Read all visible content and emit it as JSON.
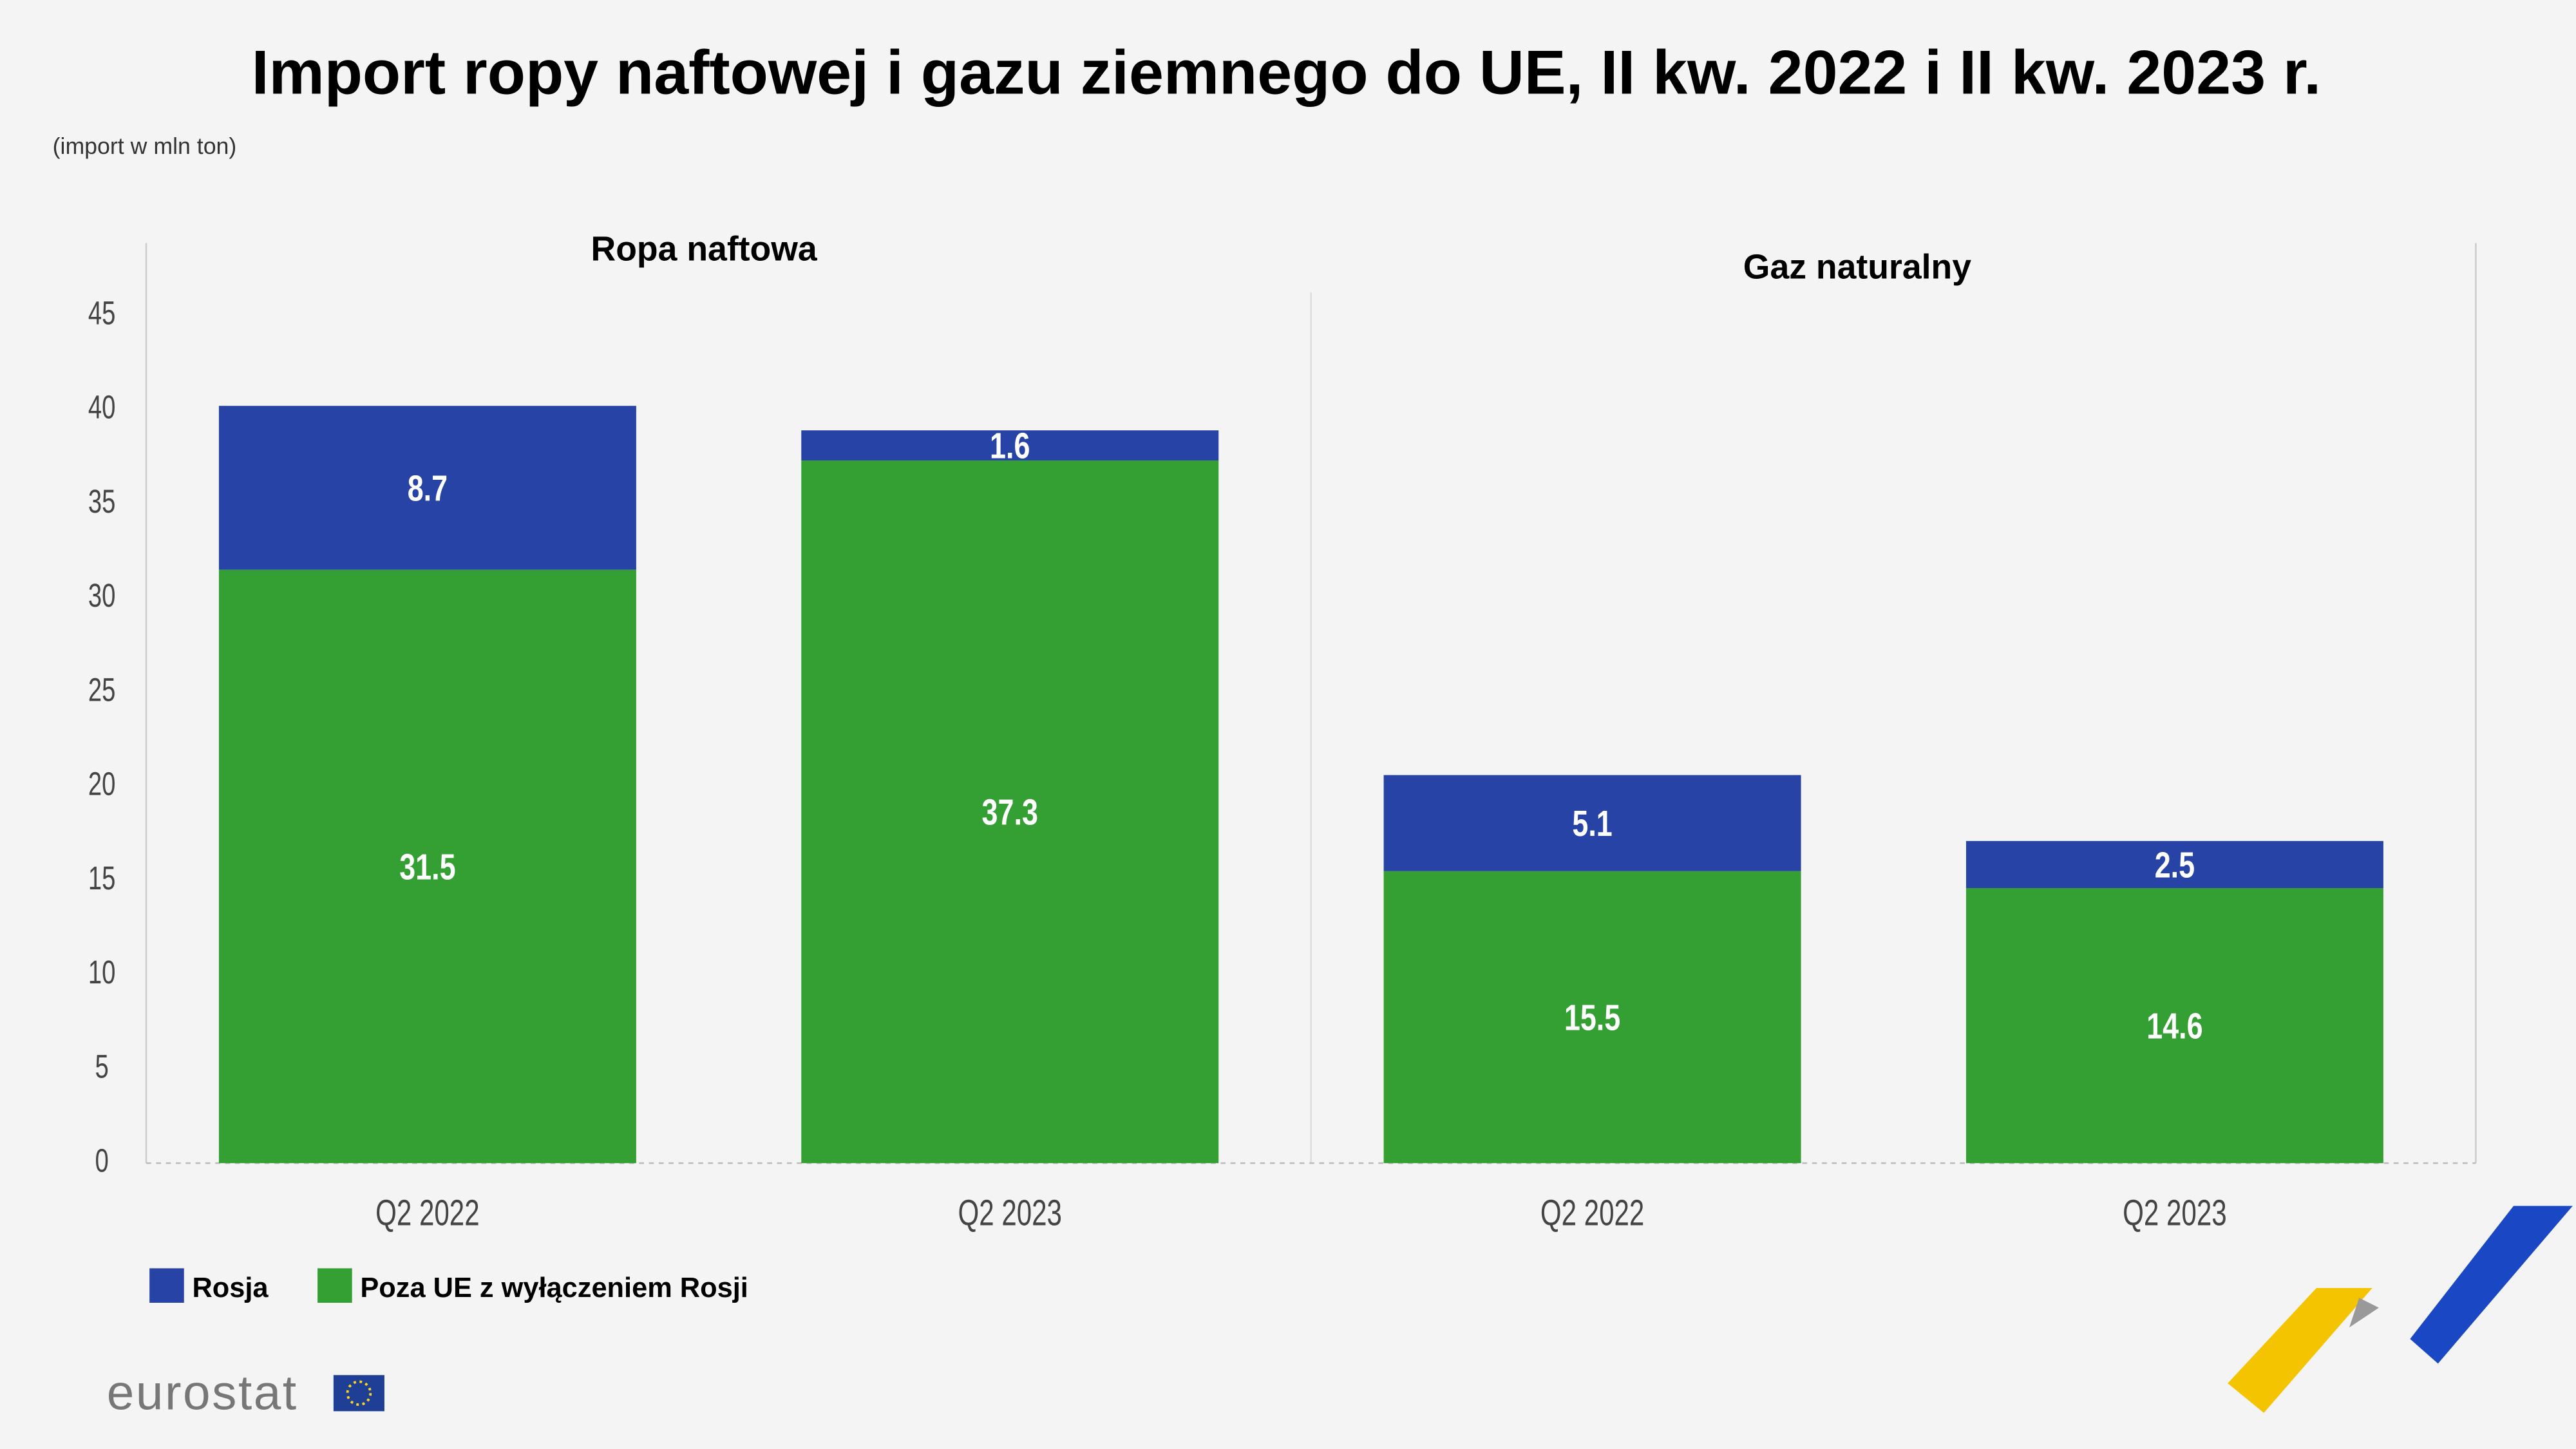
{
  "chart_data": {
    "type": "bar",
    "stacked": true,
    "title": "Import ropy naftowej i gazu ziemnego do UE, II kw. 2022 i II kw. 2023 r.",
    "subtitle": "(import w  mln ton)",
    "groups": [
      {
        "title": "Ropa naftowa",
        "categories": [
          "Q2 2022",
          "Q2 2023"
        ]
      },
      {
        "title": "Gaz naturalny",
        "categories": [
          "Q2 2022",
          "Q2 2023"
        ]
      }
    ],
    "series": [
      {
        "name": "Poza UE z wyłączeniem Rosji",
        "color": "#34a034",
        "values": [
          31.5,
          37.3,
          15.5,
          14.6
        ]
      },
      {
        "name": "Rosja",
        "color": "#2743a5",
        "values": [
          8.7,
          1.6,
          5.1,
          2.5
        ]
      }
    ],
    "legend_order": [
      1,
      0
    ],
    "ylim": [
      0,
      45
    ],
    "yticks": [
      0,
      5,
      10,
      15,
      20,
      25,
      30,
      35,
      40,
      45
    ],
    "logo_text": "eurostat"
  }
}
